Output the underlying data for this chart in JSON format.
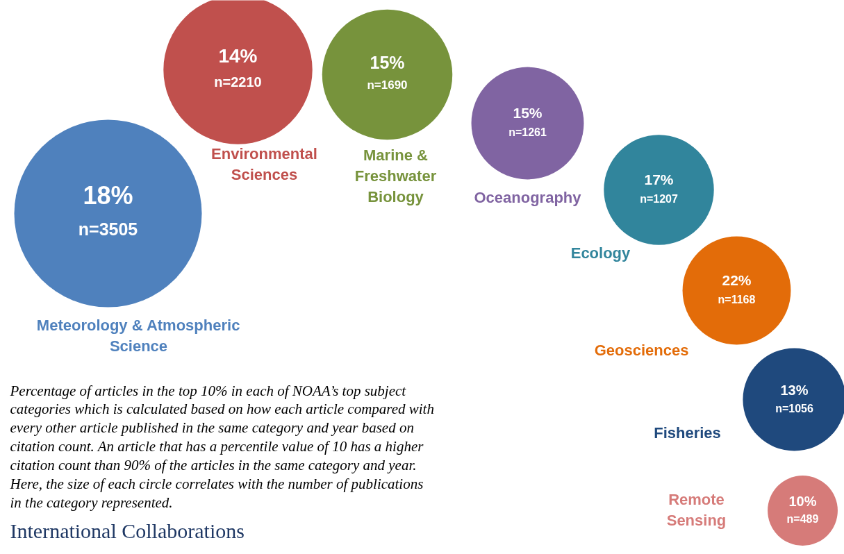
{
  "chart_data": {
    "type": "other",
    "categories": [
      "Meteorology & Atmospheric Science",
      "Environmental Sciences",
      "Marine & Freshwater Biology",
      "Oceanography",
      "Ecology",
      "Geosciences",
      "Fisheries",
      "Remote Sensing"
    ],
    "values": [
      3505,
      2210,
      1690,
      1261,
      1207,
      1168,
      1056,
      489
    ],
    "value_labels": [
      "n=3505",
      "n=2210",
      "n=1690",
      "n=1261",
      "n=1207",
      "n=1168",
      "n=1056",
      "n=489"
    ],
    "colors": [
      "#4f81bd",
      "#c0504d",
      "#77933c",
      "#8064a2",
      "#31859c",
      "#e36c09",
      "#1f497d",
      "#d67b79"
    ],
    "annotations": [
      {
        "text": "18%",
        "x": "Meteorology & Atmospheric Science"
      },
      {
        "text": "14%",
        "x": "Environmental Sciences"
      },
      {
        "text": "15%",
        "x": "Marine & Freshwater Biology"
      },
      {
        "text": "15%",
        "x": "Oceanography"
      },
      {
        "text": "17%",
        "x": "Ecology"
      },
      {
        "text": "22%",
        "x": "Geosciences"
      },
      {
        "text": "13%",
        "x": "Fisheries"
      },
      {
        "text": "10%",
        "x": "Remote Sensing"
      },
      "Percentage of articles in the top 10% in each of NOAA’s top subject categories which is calculated based on how each article compared with every other article published in the same category and year based on citation count. An article that has a percentile value of 10 has a higher citation count than 90% of the articles in the same category and year. Here, the size of each circle correlates with the number of publications in the category represented.",
      "International Collaborations"
    ]
  }
}
